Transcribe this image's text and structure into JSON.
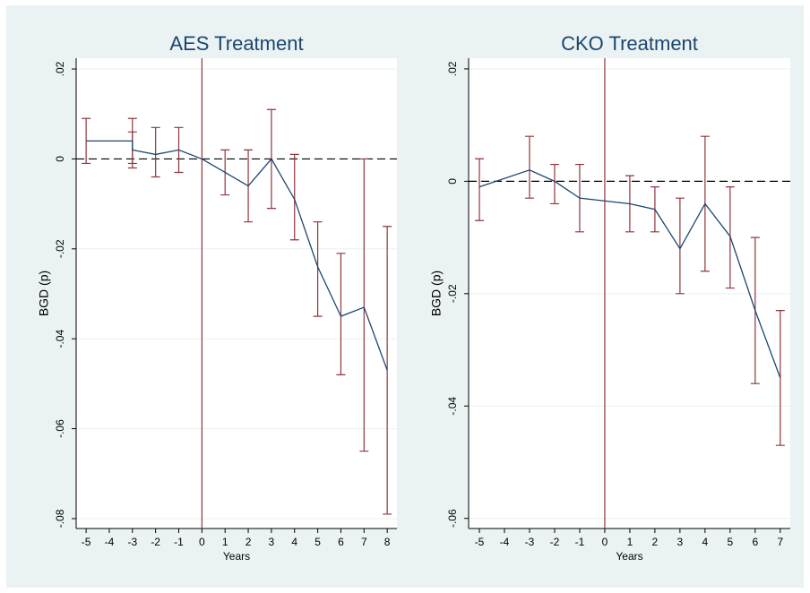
{
  "chart_data": [
    {
      "type": "line",
      "title": "AES Treatment",
      "xlabel": "Years",
      "ylabel": "BGD (p)",
      "x": [
        -5,
        -3,
        -3,
        -2,
        -1,
        0,
        1,
        2,
        3,
        4,
        5,
        6,
        7,
        8
      ],
      "series": [
        {
          "color": "#1a476f",
          "error_color": "#90353b",
          "values": [
            0.004,
            0.004,
            0.002,
            0.001,
            0.002,
            0,
            -0.003,
            -0.006,
            0,
            -0.009,
            -0.024,
            -0.035,
            -0.033,
            -0.047
          ],
          "ci_low": [
            -0.001,
            -0.001,
            -0.002,
            -0.004,
            -0.003,
            null,
            -0.008,
            -0.014,
            -0.011,
            -0.018,
            -0.035,
            -0.048,
            -0.065,
            -0.079
          ],
          "ci_high": [
            0.009,
            0.009,
            0.006,
            0.007,
            0.007,
            null,
            0.002,
            0.002,
            0.011,
            0.001,
            -0.014,
            -0.021,
            0,
            -0.015
          ]
        }
      ],
      "xlim": [
        -5.43,
        8.42
      ],
      "xticks": [
        -5,
        -4,
        -3,
        -2,
        -1,
        0,
        1,
        2,
        3,
        4,
        5,
        6,
        7,
        8
      ],
      "ylim": [
        -0.0822,
        0.0224
      ],
      "yticks": [
        {
          "value": 0.02,
          "label": ".02"
        },
        0,
        {
          "value": -0.02,
          "label": "-.02"
        },
        {
          "value": -0.04,
          "label": "-.04"
        },
        {
          "value": -0.06,
          "label": "-.06"
        },
        {
          "value": -0.08,
          "label": "-.08"
        }
      ],
      "vline": 0,
      "hline": 0,
      "vline_color": "#90353b",
      "grid": true
    },
    {
      "type": "line",
      "title": "CKO Treatment",
      "xlabel": "Years",
      "ylabel": "BGD (p)",
      "x": [
        -5,
        -3,
        -2,
        -1,
        1,
        2,
        3,
        4,
        5,
        6,
        7
      ],
      "series": [
        {
          "color": "#1a476f",
          "error_color": "#90353b",
          "values": [
            -0.001,
            0.002,
            0,
            -0.003,
            -0.004,
            -0.005,
            -0.012,
            -0.004,
            -0.0098,
            -0.023,
            -0.035
          ],
          "ci_low": [
            -0.007,
            -0.003,
            -0.004,
            -0.009,
            -0.009,
            -0.009,
            -0.02,
            -0.016,
            -0.019,
            -0.036,
            -0.047
          ],
          "ci_high": [
            0.004,
            0.008,
            0.003,
            0.003,
            0.001,
            -0.001,
            -0.003,
            0.008,
            -0.001,
            -0.01,
            -0.023
          ]
        }
      ],
      "xlim": [
        -5.43,
        7.4
      ],
      "xticks": [
        -5,
        -4,
        -3,
        -2,
        -1,
        0,
        1,
        2,
        3,
        4,
        5,
        6,
        7
      ],
      "ylim": [
        -0.0618,
        0.0219
      ],
      "yticks": [
        {
          "value": 0.02,
          "label": ".02"
        },
        0,
        {
          "value": -0.02,
          "label": "-.02"
        },
        {
          "value": -0.04,
          "label": "-.04"
        },
        {
          "value": -0.06,
          "label": "-.06"
        }
      ],
      "vline": 0,
      "hline": 0,
      "vline_color": "#90353b",
      "grid": true
    }
  ]
}
